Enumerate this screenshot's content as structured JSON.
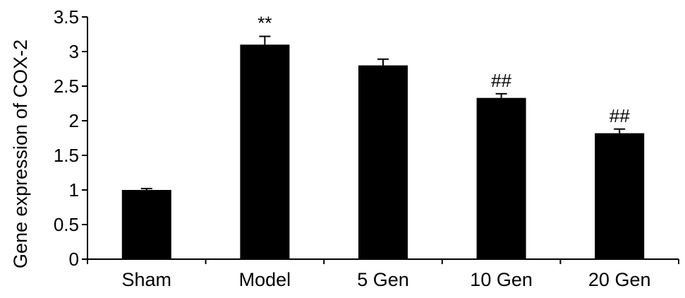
{
  "chart_data": {
    "type": "bar",
    "title": "",
    "xlabel": "",
    "ylabel": "Gene expression of COX-2",
    "ylim": [
      0,
      3.5
    ],
    "yticks": [
      "0",
      "0.5",
      "1",
      "1.5",
      "2",
      "2.5",
      "3",
      "3.5"
    ],
    "categories": [
      "Sham",
      "Model",
      "5 Gen",
      "10 Gen",
      "20 Gen"
    ],
    "values": [
      1.0,
      3.1,
      2.8,
      2.33,
      1.82
    ],
    "errors": [
      0.02,
      0.12,
      0.09,
      0.06,
      0.06
    ],
    "annotations": [
      "",
      "**",
      "",
      "##",
      "##"
    ],
    "bar_color": "#000000",
    "grid": false,
    "legend": "none"
  }
}
